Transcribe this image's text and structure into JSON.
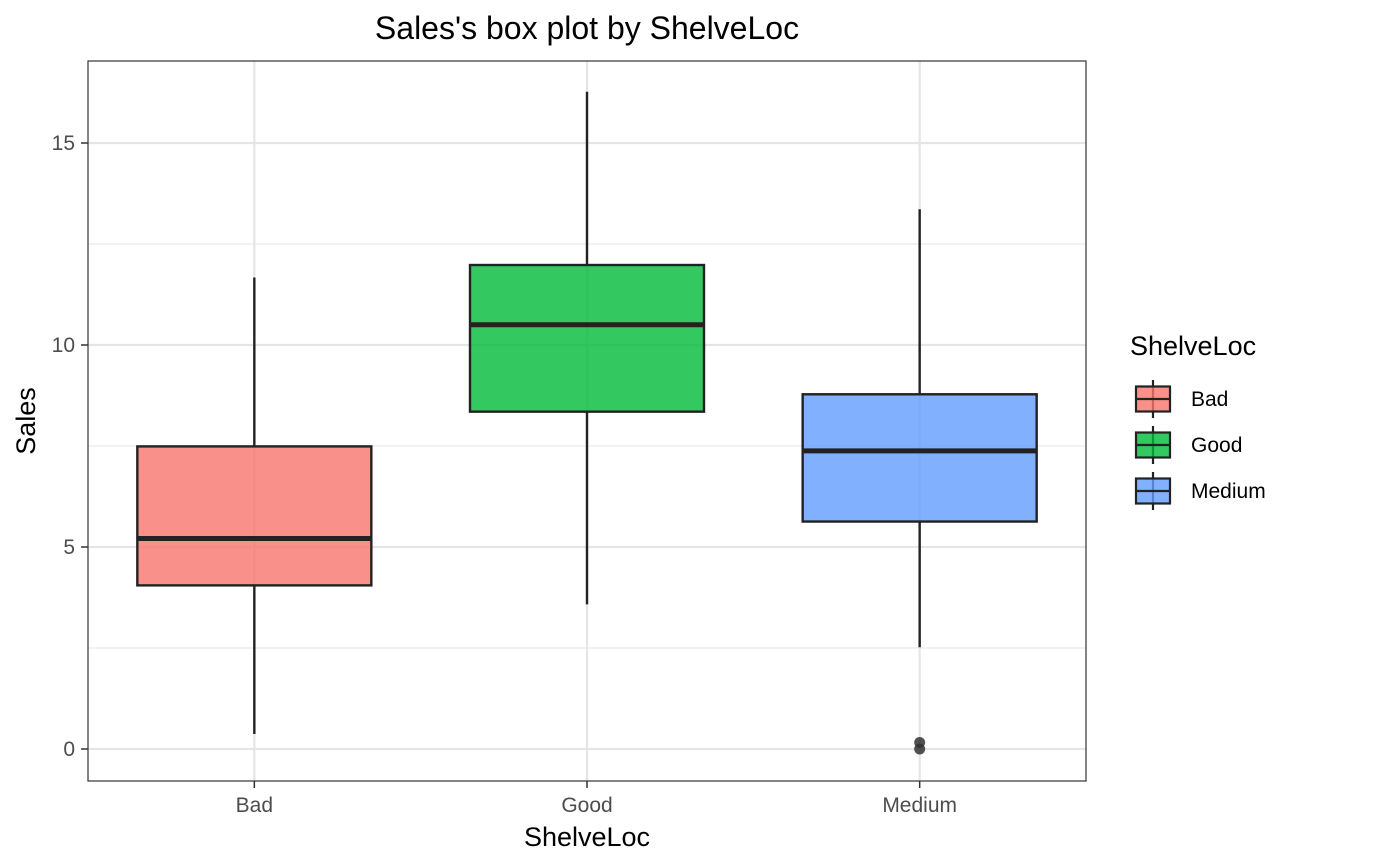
{
  "chart_data": {
    "type": "box",
    "title": "Sales's box plot by ShelveLoc",
    "xlabel": "ShelveLoc",
    "ylabel": "Sales",
    "ylim": [
      -0.8,
      17.0
    ],
    "yticks": [
      0,
      5,
      10,
      15
    ],
    "y_minor_ticks": [
      2.5,
      7.5,
      12.5
    ],
    "grid": true,
    "legend": {
      "title": "ShelveLoc",
      "position": "right"
    },
    "categories": [
      "Bad",
      "Good",
      "Medium"
    ],
    "series": [
      {
        "name": "Bad",
        "color": "#F8766D",
        "min": 0.37,
        "q1": 4.05,
        "median": 5.21,
        "q3": 7.49,
        "max": 11.67,
        "outliers": []
      },
      {
        "name": "Good",
        "color": "#00BA38",
        "min": 3.58,
        "q1": 8.35,
        "median": 10.5,
        "q3": 11.98,
        "max": 16.27,
        "outliers": []
      },
      {
        "name": "Medium",
        "color": "#619CFF",
        "min": 2.52,
        "q1": 5.63,
        "median": 7.38,
        "q3": 8.78,
        "max": 13.36,
        "outliers": [
          0.0,
          0.16
        ]
      }
    ]
  }
}
